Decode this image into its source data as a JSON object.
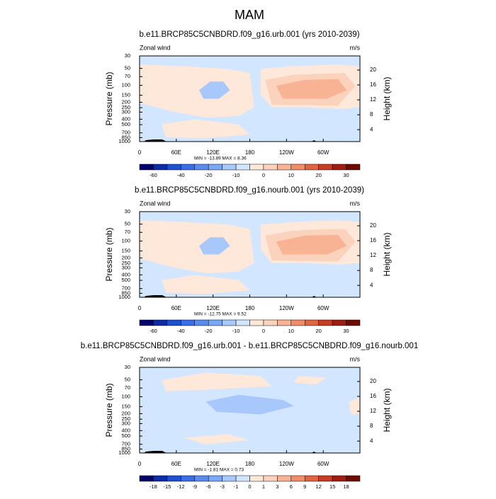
{
  "title": "MAM",
  "axes": {
    "ylim": [
      30,
      1000
    ],
    "log_y": true,
    "yticks": [
      30,
      50,
      70,
      100,
      150,
      200,
      250,
      300,
      400,
      500,
      700,
      850,
      1000
    ],
    "y2lim": [
      0.8,
      23.8
    ],
    "y2ticks": [
      4,
      8,
      12,
      16,
      20
    ],
    "xlim": [
      0,
      360
    ],
    "xticks": [
      0,
      {
        "value": 60,
        "label": "60E"
      },
      {
        "value": 120,
        "label": "120E"
      },
      180,
      {
        "value": 240,
        "label": "120W"
      },
      {
        "value": 300,
        "label": "60W"
      }
    ]
  },
  "colors": [
    "#03006e",
    "#0a2ca8",
    "#1e50d2",
    "#3a6ee8",
    "#5a8cf0",
    "#7aa8f5",
    "#a8c8fb",
    "#d2e6ff",
    "#fde8da",
    "#fbd2bc",
    "#f8b294",
    "#f08c66",
    "#e06440",
    "#c83c24",
    "#a01c10",
    "#6e0a00"
  ],
  "panels": [
    {
      "title": "b.e11.BRCP85C5CNBDRD.f09_g16.urb.001 (yrs 2010-2039)",
      "left_label": "Zonal wind",
      "right_label": "m/s",
      "ylabel": "Pressure (mb)",
      "y2label": "Height (km)",
      "stats": "MIN = -13.89  MAX =  8.36",
      "colorbar_labels": [
        -60,
        -40,
        -20,
        -10,
        0,
        10,
        20,
        30
      ]
    },
    {
      "title": "b.e11.BRCP85C5CNBDRD.f09_g16.nourb.001 (yrs 2010-2039)",
      "left_label": "Zonal wind",
      "right_label": "m/s",
      "ylabel": "Pressure (mb)",
      "y2label": "Height (km)",
      "stats": "MIN = -12.75  MAX =  9.52",
      "colorbar_labels": [
        -60,
        -40,
        -20,
        -10,
        0,
        10,
        20,
        30
      ]
    },
    {
      "title": "b.e11.BRCP85C5CNBDRD.f09_g16.urb.001 - b.e11.BRCP85C5CNBDRD.f09_g16.nourb.001",
      "left_label": "Zonal wind",
      "right_label": "m/s",
      "ylabel": "Pressure (mb)",
      "y2label": "Height (km)",
      "stats": "MIN = -1.81  MAX =  0.73",
      "colorbar_labels": [
        -18,
        -15,
        -12,
        -9,
        -6,
        -3,
        -1,
        0,
        1,
        3,
        6,
        9,
        12,
        15,
        18
      ]
    }
  ]
}
